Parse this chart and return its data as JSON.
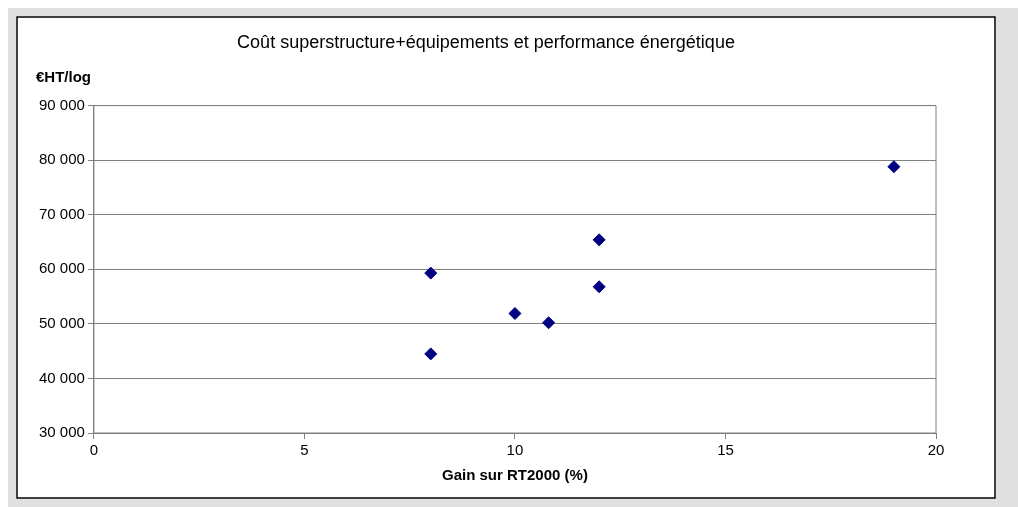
{
  "chart_data": {
    "type": "scatter",
    "title": "Coût superstructure+équipements et performance énergétique",
    "xlabel": "Gain sur RT2000 (%)",
    "ylabel": "€HT/log",
    "x": [
      8,
      8,
      10,
      10.8,
      12,
      12,
      19
    ],
    "series": [
      {
        "color": "#000080",
        "values": [
          59300,
          44500,
          51900,
          50200,
          65400,
          56800,
          78800
        ]
      }
    ],
    "xlim": [
      0,
      20
    ],
    "xticks": [
      0,
      5,
      10,
      15,
      20
    ],
    "ylim": [
      30000,
      90000
    ],
    "yticks": [
      {
        "value": 30000,
        "label": "30 000"
      },
      {
        "value": 40000,
        "label": "40 000"
      },
      {
        "value": 50000,
        "label": "50 000"
      },
      {
        "value": 60000,
        "label": "60 000"
      },
      {
        "value": 70000,
        "label": "70 000"
      },
      {
        "value": 80000,
        "label": "80 000"
      },
      {
        "value": 90000,
        "label": "90 000"
      }
    ],
    "grid": "y",
    "legend": false,
    "marker": "diamond"
  }
}
